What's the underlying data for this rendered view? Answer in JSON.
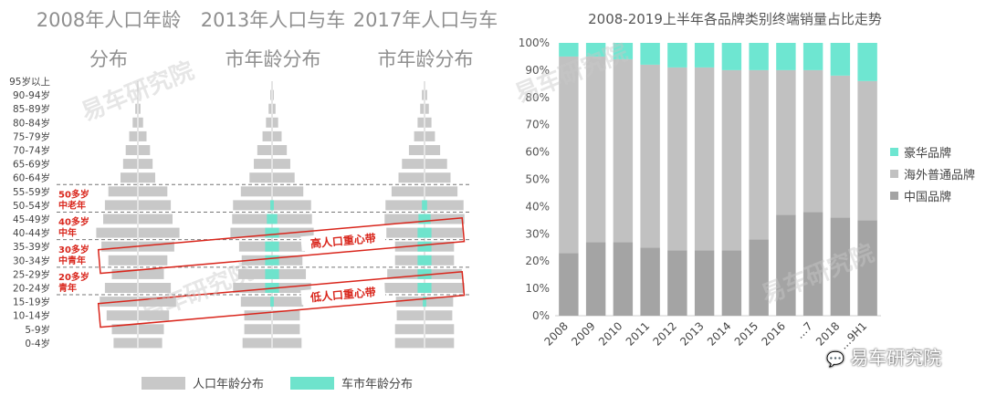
{
  "pyramids": {
    "titles": [
      [
        "2008年人口年龄",
        "分布"
      ],
      [
        "2013年人口与车",
        "市年龄分布"
      ],
      [
        "2017年人口与车",
        "市年龄分布"
      ]
    ],
    "age_groups": [
      "95岁以上",
      "90-94岁",
      "85-89岁",
      "80-84岁",
      "75-79岁",
      "70-74岁",
      "65-69岁",
      "60-64岁",
      "55-59岁",
      "50-54岁",
      "45-49岁",
      "40-44岁",
      "35-39岁",
      "30-34岁",
      "25-29岁",
      "20-24岁",
      "15-19岁",
      "10-14岁",
      "5-9岁",
      "0-4岁"
    ],
    "population": [
      [
        0,
        1,
        3,
        6,
        10,
        14,
        17,
        20,
        34,
        38,
        40,
        48,
        42,
        34,
        30,
        38,
        44,
        36,
        30,
        28
      ],
      [
        0,
        2,
        4,
        7,
        11,
        17,
        21,
        26,
        36,
        45,
        46,
        48,
        38,
        35,
        39,
        45,
        36,
        32,
        32,
        34
      ],
      [
        0,
        3,
        5,
        8,
        12,
        18,
        26,
        30,
        38,
        45,
        46,
        44,
        34,
        34,
        43,
        46,
        33,
        32,
        34,
        34
      ]
    ],
    "car_market": [
      [],
      [
        0,
        0,
        0,
        0,
        0,
        0,
        0,
        0,
        0,
        2,
        6,
        8,
        8,
        8,
        8,
        8,
        2,
        0,
        0,
        0
      ],
      [
        0,
        0,
        0,
        0,
        0,
        0,
        0,
        0,
        0,
        3,
        7,
        8,
        8,
        8,
        8,
        8,
        2,
        0,
        0,
        0
      ]
    ],
    "band_labels": [
      {
        "line1": "50多岁",
        "line2": "中老年"
      },
      {
        "line1": "40多岁",
        "line2": "中年"
      },
      {
        "line1": "30多岁",
        "line2": "中青年"
      },
      {
        "line1": "20多岁",
        "line2": "青年"
      }
    ],
    "high_band_label": "高人口重心带",
    "low_band_label": "低人口重心带",
    "legend": {
      "population": "人口年龄分布",
      "car_market": "车市年龄分布"
    },
    "colors": {
      "population": "#c8c8c8",
      "car_market": "#6ee3cc",
      "band": "#d9261c"
    }
  },
  "chart_data": {
    "type": "bar",
    "stacked": true,
    "title": "2008-2019上半年各品牌类别终端销量占比走势",
    "categories": [
      "2008",
      "2009",
      "2010",
      "2011",
      "2012",
      "2013",
      "2014",
      "2015",
      "2016",
      "2017",
      "2018",
      "2019H1"
    ],
    "tick_labels": [
      "2008",
      "2009",
      "2010",
      "2011",
      "2012",
      "2013",
      "2014",
      "2015",
      "2016",
      "…7",
      "2018",
      "…9H1"
    ],
    "series": [
      {
        "name": "中国品牌",
        "color": "#a4a4a4",
        "values": [
          23,
          27,
          27,
          25,
          24,
          24,
          24,
          28,
          37,
          38,
          36,
          35
        ]
      },
      {
        "name": "海外普通品牌",
        "color": "#c1c1c1",
        "values": [
          72,
          68,
          67,
          67,
          67,
          67,
          66,
          62,
          53,
          52,
          52,
          51
        ]
      },
      {
        "name": "豪华品牌",
        "color": "#6ee6d1",
        "values": [
          5,
          5,
          6,
          8,
          9,
          9,
          10,
          10,
          10,
          10,
          12,
          14
        ]
      }
    ],
    "legend_order": [
      "豪华品牌",
      "海外普通品牌",
      "中国品牌"
    ],
    "yticks": [
      "0%",
      "10%",
      "20%",
      "30%",
      "40%",
      "50%",
      "60%",
      "70%",
      "80%",
      "90%",
      "100%"
    ],
    "ylim": [
      0,
      100
    ],
    "legend_position": "right"
  },
  "watermark": {
    "brand": "易车研究院"
  }
}
